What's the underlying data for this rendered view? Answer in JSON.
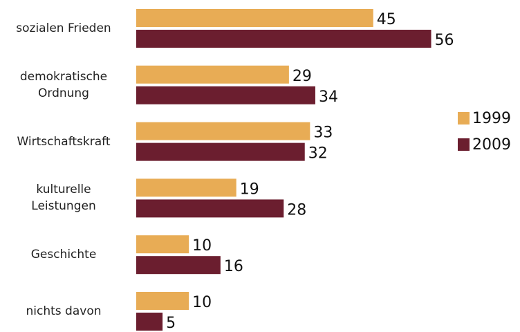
{
  "chart_data": {
    "type": "hbar",
    "categories": [
      "sozialen Frieden",
      "demokratische\nOrdnung",
      "Wirtschaftskraft",
      "kulturelle\nLeistungen",
      "Geschichte",
      "nichts davon"
    ],
    "series": [
      {
        "name": "1999",
        "color": "#e8ac55",
        "values": [
          45,
          29,
          33,
          19,
          10,
          10
        ]
      },
      {
        "name": "2009",
        "color": "#6b1e2f",
        "values": [
          56,
          34,
          32,
          28,
          16,
          5
        ]
      }
    ],
    "xlim": [
      0,
      60
    ],
    "legend": "right"
  }
}
